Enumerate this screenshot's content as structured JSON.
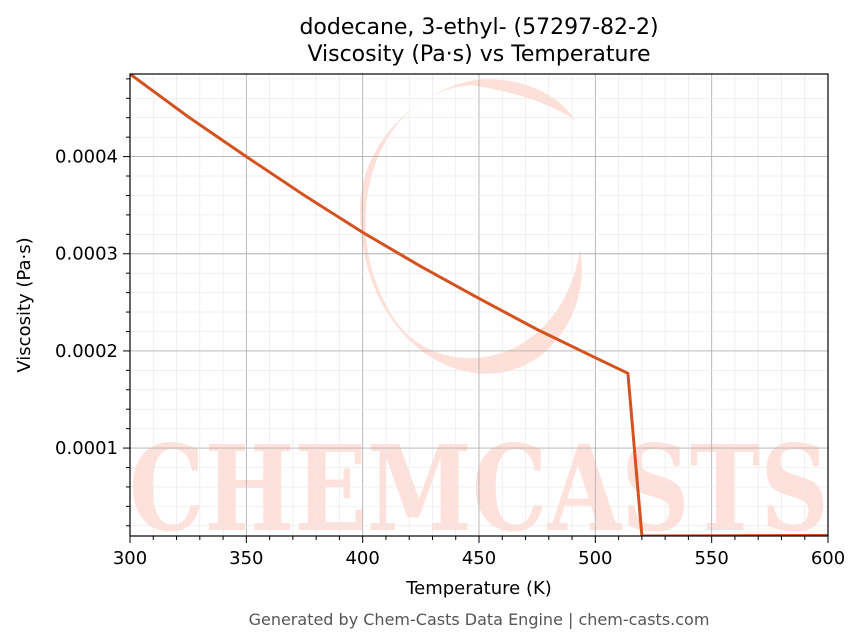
{
  "chart_data": {
    "type": "line",
    "title_line1": "dodecane, 3-ethyl- (57297-82-2)",
    "title_line2": "Viscosity (Pa·s) vs Temperature",
    "xlabel": "Temperature (K)",
    "ylabel": "Viscosity (Pa·s)",
    "xlim": [
      300,
      600
    ],
    "ylim": [
      9.5e-06,
      0.000485
    ],
    "x_ticks": [
      300,
      350,
      400,
      450,
      500,
      550,
      600
    ],
    "x_tick_labels": [
      "300",
      "350",
      "400",
      "450",
      "500",
      "550",
      "600"
    ],
    "y_ticks": [
      0.0001,
      0.0002,
      0.0003,
      0.0004
    ],
    "y_tick_labels": [
      "0.0001",
      "0.0002",
      "0.0003",
      "0.0004"
    ],
    "grid": true,
    "line_color": "#d4521f",
    "series": [
      {
        "x": [
          300,
          325,
          350,
          375,
          400,
          425,
          450,
          475,
          500,
          514,
          520,
          600
        ],
        "y": [
          0.000485,
          0.000441,
          0.0004,
          0.00036,
          0.000322,
          0.000287,
          0.000254,
          0.000222,
          0.000193,
          0.000177,
          9.5e-06,
          1e-05
        ]
      }
    ]
  },
  "watermark": {
    "text": "CHEMCASTS",
    "color": "#ffd5cc"
  },
  "footer": "Generated by Chem-Casts Data Engine | chem-casts.com"
}
